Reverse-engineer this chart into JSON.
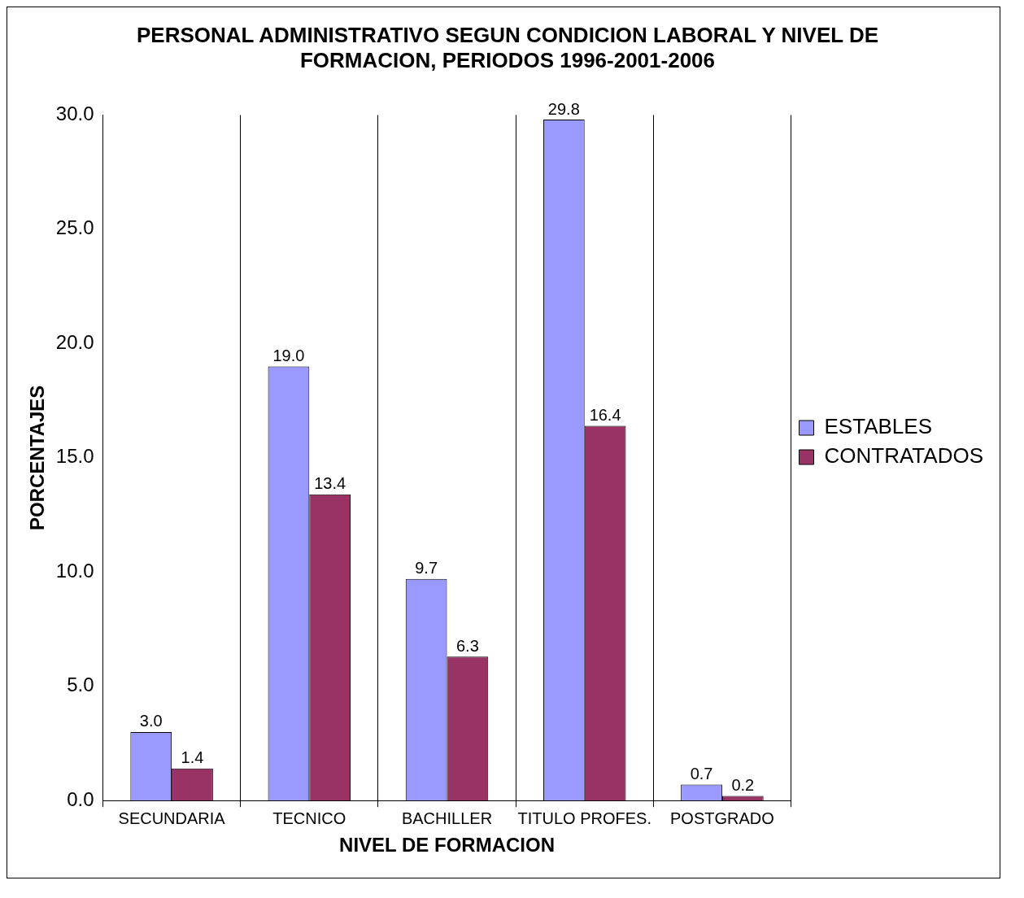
{
  "chart_data": {
    "type": "bar",
    "title": "PERSONAL ADMINISTRATIVO SEGUN CONDICION LABORAL Y NIVEL DE FORMACION, PERIODOS 1996-2001-2006",
    "xlabel": "NIVEL DE FORMACION",
    "ylabel": "PORCENTAJES",
    "categories": [
      "SECUNDARIA",
      "TECNICO",
      "BACHILLER",
      "TITULO PROFES.",
      "POSTGRADO"
    ],
    "series": [
      {
        "name": "ESTABLES",
        "color": "#9999ff",
        "values": [
          3.0,
          19.0,
          9.7,
          29.8,
          0.7
        ],
        "value_labels": [
          "3.0",
          "19.0",
          "9.7",
          "29.8",
          "0.7"
        ]
      },
      {
        "name": "CONTRATADOS",
        "color": "#993366",
        "values": [
          1.4,
          13.4,
          6.3,
          16.4,
          0.2
        ],
        "value_labels": [
          "1.4",
          "13.4",
          "6.3",
          "16.4",
          "0.2"
        ]
      }
    ],
    "ylim": [
      0,
      30
    ],
    "yticks": [
      {
        "value": 0,
        "label": "0.0"
      },
      {
        "value": 5,
        "label": "5.0"
      },
      {
        "value": 10,
        "label": "10.0"
      },
      {
        "value": 15,
        "label": "15.0"
      },
      {
        "value": 20,
        "label": "20.0"
      },
      {
        "value": 25,
        "label": "25.0"
      },
      {
        "value": 30,
        "label": "30.0"
      }
    ],
    "grid": "x",
    "legend": "right"
  }
}
